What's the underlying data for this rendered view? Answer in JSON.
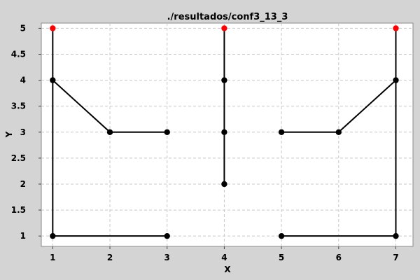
{
  "chart_data": {
    "type": "scatter",
    "title": "./resultados/conf3_13_3",
    "xlabel": "X",
    "ylabel": "Y",
    "xlim": [
      0.8,
      7.3
    ],
    "ylim": [
      0.8,
      5.1
    ],
    "x_ticks": [
      1,
      2,
      3,
      4,
      5,
      6,
      7
    ],
    "y_ticks": [
      1,
      1.5,
      2,
      2.5,
      3,
      3.5,
      4,
      4.5,
      5
    ],
    "grid": true,
    "legend": "none",
    "colors": {
      "path": "#000000",
      "node": "#000000",
      "end_node": "#ff0000"
    },
    "segments": [
      [
        [
          1,
          5
        ],
        [
          1,
          4
        ]
      ],
      [
        [
          1,
          4
        ],
        [
          2,
          3
        ]
      ],
      [
        [
          2,
          3
        ],
        [
          3,
          3
        ]
      ],
      [
        [
          1,
          4
        ],
        [
          1,
          1
        ]
      ],
      [
        [
          1,
          1
        ],
        [
          3,
          1
        ]
      ],
      [
        [
          4,
          5
        ],
        [
          4,
          4
        ]
      ],
      [
        [
          4,
          4
        ],
        [
          4,
          3
        ]
      ],
      [
        [
          4,
          3
        ],
        [
          4,
          2
        ]
      ],
      [
        [
          7,
          5
        ],
        [
          7,
          4
        ]
      ],
      [
        [
          7,
          4
        ],
        [
          6,
          3
        ]
      ],
      [
        [
          6,
          3
        ],
        [
          5,
          3
        ]
      ],
      [
        [
          7,
          4
        ],
        [
          7,
          1
        ]
      ],
      [
        [
          7,
          1
        ],
        [
          5,
          1
        ]
      ]
    ],
    "points": [
      {
        "x": 1,
        "y": 5,
        "kind": "end"
      },
      {
        "x": 4,
        "y": 5,
        "kind": "end"
      },
      {
        "x": 7,
        "y": 5,
        "kind": "end"
      },
      {
        "x": 1,
        "y": 4,
        "kind": "node"
      },
      {
        "x": 2,
        "y": 3,
        "kind": "node"
      },
      {
        "x": 3,
        "y": 3,
        "kind": "node"
      },
      {
        "x": 1,
        "y": 1,
        "kind": "node"
      },
      {
        "x": 3,
        "y": 1,
        "kind": "node"
      },
      {
        "x": 4,
        "y": 4,
        "kind": "node"
      },
      {
        "x": 4,
        "y": 3,
        "kind": "node"
      },
      {
        "x": 4,
        "y": 2,
        "kind": "node"
      },
      {
        "x": 7,
        "y": 4,
        "kind": "node"
      },
      {
        "x": 6,
        "y": 3,
        "kind": "node"
      },
      {
        "x": 5,
        "y": 3,
        "kind": "node"
      },
      {
        "x": 7,
        "y": 1,
        "kind": "node"
      },
      {
        "x": 5,
        "y": 1,
        "kind": "node"
      }
    ]
  }
}
